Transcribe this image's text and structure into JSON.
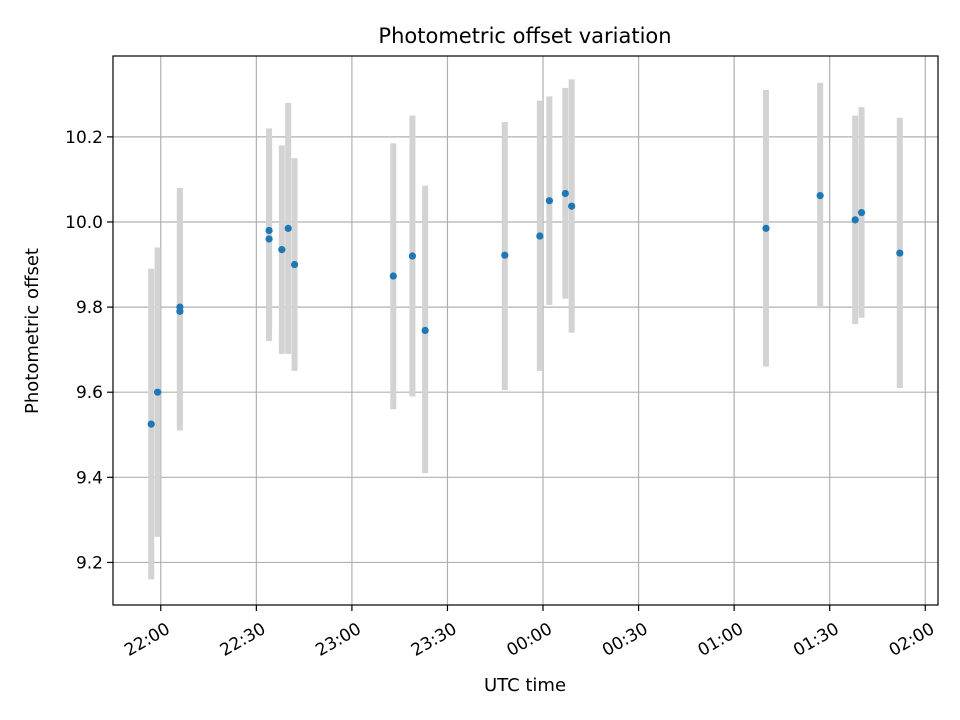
{
  "chart_data": {
    "type": "scatter",
    "title": "Photometric offset variation",
    "xlabel": "UTC time",
    "ylabel": "Photometric offset",
    "grid": true,
    "legend": "none",
    "x_axis_type": "time",
    "xlim": [
      "21:45",
      "02:04"
    ],
    "ylim": [
      9.1,
      10.39
    ],
    "x_ticks": [
      "22:00",
      "22:30",
      "23:00",
      "23:30",
      "00:00",
      "00:30",
      "01:00",
      "01:30",
      "02:00"
    ],
    "y_ticks": [
      9.2,
      9.4,
      9.6,
      9.8,
      10.0,
      10.2
    ],
    "colors": {
      "point": "#1f77b4",
      "errorbar": "#d3d3d3",
      "grid": "#b0b0b0"
    },
    "points": [
      {
        "x": "21:57",
        "y": 9.525,
        "low": 9.16,
        "high": 9.89
      },
      {
        "x": "21:59",
        "y": 9.6,
        "low": 9.26,
        "high": 9.94
      },
      {
        "x": "22:06",
        "y": 9.8,
        "low": 9.51,
        "high": 10.08
      },
      {
        "x": "22:06",
        "y": 9.79,
        "low": 9.52,
        "high": 10.07
      },
      {
        "x": "22:34",
        "y": 9.96,
        "low": 9.72,
        "high": 10.2
      },
      {
        "x": "22:34",
        "y": 9.98,
        "low": 9.75,
        "high": 10.22
      },
      {
        "x": "22:38",
        "y": 9.935,
        "low": 9.69,
        "high": 10.18
      },
      {
        "x": "22:40",
        "y": 9.985,
        "low": 9.69,
        "high": 10.28
      },
      {
        "x": "22:42",
        "y": 9.9,
        "low": 9.65,
        "high": 10.15
      },
      {
        "x": "23:13",
        "y": 9.873,
        "low": 9.56,
        "high": 10.185
      },
      {
        "x": "23:19",
        "y": 9.92,
        "low": 9.59,
        "high": 10.25
      },
      {
        "x": "23:23",
        "y": 9.745,
        "low": 9.41,
        "high": 10.085
      },
      {
        "x": "23:48",
        "y": 9.922,
        "low": 9.605,
        "high": 10.235
      },
      {
        "x": "23:59",
        "y": 9.967,
        "low": 9.65,
        "high": 10.285
      },
      {
        "x": "00:02",
        "y": 10.05,
        "low": 9.805,
        "high": 10.295
      },
      {
        "x": "00:07",
        "y": 10.067,
        "low": 9.82,
        "high": 10.315
      },
      {
        "x": "00:09",
        "y": 10.037,
        "low": 9.74,
        "high": 10.335
      },
      {
        "x": "01:10",
        "y": 9.985,
        "low": 9.66,
        "high": 10.31
      },
      {
        "x": "01:27",
        "y": 10.062,
        "low": 9.797,
        "high": 10.327
      },
      {
        "x": "01:38",
        "y": 10.005,
        "low": 9.76,
        "high": 10.25
      },
      {
        "x": "01:40",
        "y": 10.022,
        "low": 9.775,
        "high": 10.27
      },
      {
        "x": "01:52",
        "y": 9.927,
        "low": 9.61,
        "high": 10.245
      }
    ]
  }
}
